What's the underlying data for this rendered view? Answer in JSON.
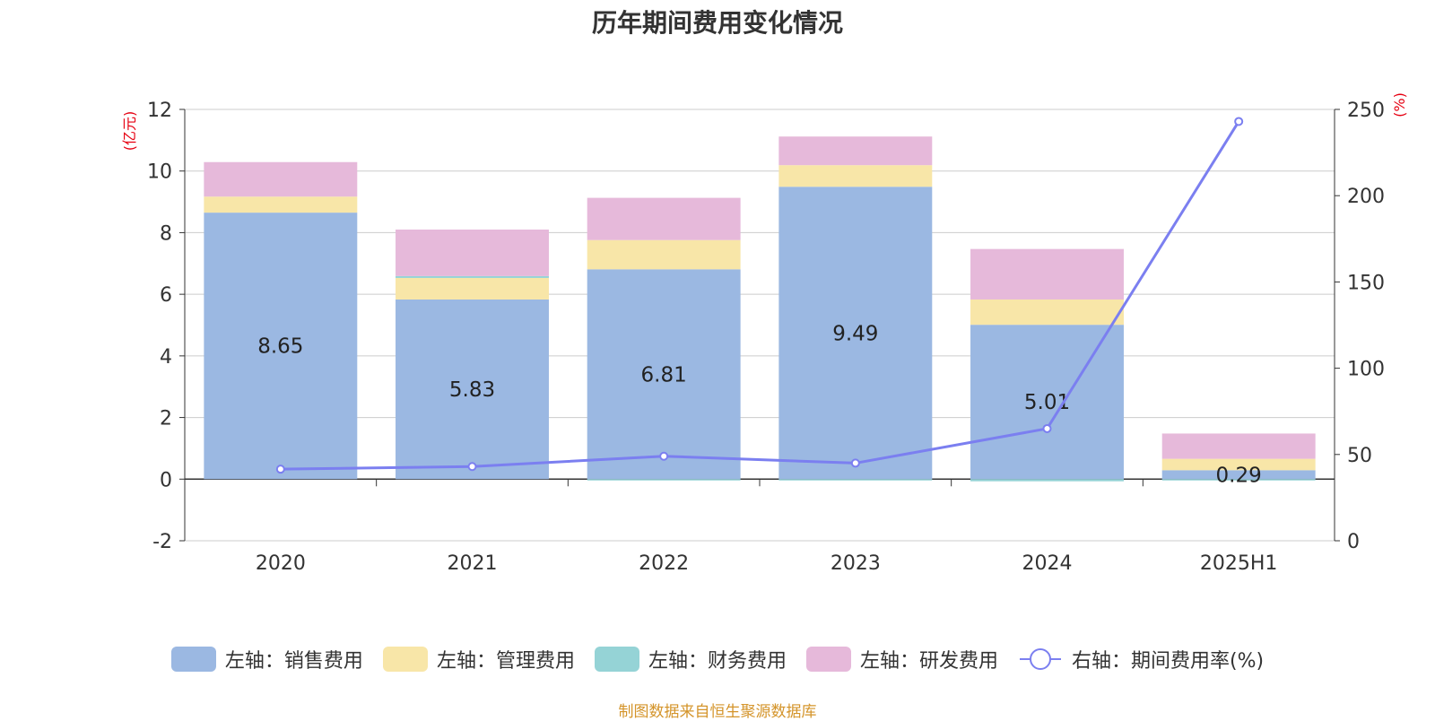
{
  "chart_data": {
    "type": "bar",
    "title": "历年期间费用变化情况",
    "left_axis_unit": "(亿元)",
    "right_axis_unit": "(%)",
    "categories": [
      "2020",
      "2021",
      "2022",
      "2023",
      "2024",
      "2025H1"
    ],
    "left_ylim": [
      -2,
      12
    ],
    "left_ticks": [
      -2,
      0,
      2,
      4,
      6,
      8,
      10,
      12
    ],
    "right_ylim": [
      0,
      250
    ],
    "right_ticks": [
      0,
      50,
      100,
      150,
      200,
      250
    ],
    "grid": true,
    "legend_position": "bottom-center",
    "series": [
      {
        "name": "左轴：销售费用",
        "type": "bar",
        "axis": "left",
        "color": "#9bb8e2",
        "values": [
          8.65,
          5.83,
          6.81,
          9.49,
          5.01,
          0.29
        ],
        "labels": [
          "8.65",
          "5.83",
          "6.81",
          "9.49",
          "5.01",
          "0.29"
        ]
      },
      {
        "name": "左轴：管理费用",
        "type": "bar",
        "axis": "left",
        "color": "#f8e6a8",
        "values": [
          0.52,
          0.7,
          0.95,
          0.7,
          0.82,
          0.37
        ]
      },
      {
        "name": "左轴：财务费用",
        "type": "bar",
        "axis": "left",
        "color": "#95d3d6",
        "values": [
          0.0,
          0.06,
          -0.04,
          -0.04,
          -0.07,
          -0.01
        ]
      },
      {
        "name": "左轴：研发费用",
        "type": "bar",
        "axis": "left",
        "color": "#e6b9da",
        "values": [
          1.12,
          1.51,
          1.37,
          0.93,
          1.64,
          0.82
        ]
      },
      {
        "name": "右轴：期间费用率(%)",
        "type": "line",
        "axis": "right",
        "color": "#7b7ff0",
        "values": [
          41.5,
          43,
          49,
          45,
          65,
          243
        ]
      }
    ]
  },
  "source_text": "制图数据来自恒生聚源数据库"
}
